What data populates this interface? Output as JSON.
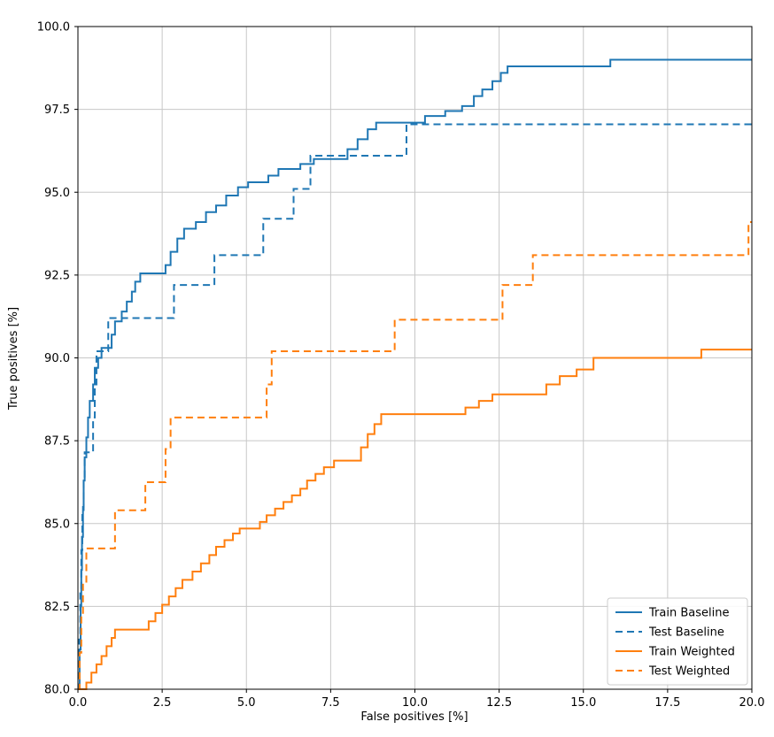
{
  "figure": {
    "background": "#ffffff",
    "spine_color": "#000000",
    "text_color": "#000000"
  },
  "chart_data": {
    "type": "line",
    "title": "",
    "xlabel": "False positives [%]",
    "ylabel": "True positives [%]",
    "xlim": [
      0,
      20
    ],
    "ylim": [
      80,
      100
    ],
    "grid": true,
    "grid_color": "#c7c7c7",
    "xticks": [
      0,
      2.5,
      5,
      7.5,
      10,
      12.5,
      15,
      17.5,
      20
    ],
    "xtick_labels": [
      "0.0",
      "2.5",
      "5.0",
      "7.5",
      "10.0",
      "12.5",
      "15.0",
      "17.5",
      "20.0"
    ],
    "yticks": [
      80,
      82.5,
      85,
      87.5,
      90,
      92.5,
      95,
      97.5,
      100
    ],
    "ytick_labels": [
      "80.0",
      "82.5",
      "85.0",
      "87.5",
      "90.0",
      "92.5",
      "95.0",
      "97.5",
      "100.0"
    ],
    "legend_position": "lower right",
    "step_mode": "post",
    "series": [
      {
        "name": "Train Baseline",
        "color": "#1f77b4",
        "style": "solid",
        "points": [
          [
            0.0,
            80.0
          ],
          [
            0.05,
            81.2
          ],
          [
            0.08,
            82.5
          ],
          [
            0.1,
            83.6
          ],
          [
            0.12,
            84.6
          ],
          [
            0.15,
            85.5
          ],
          [
            0.17,
            86.3
          ],
          [
            0.2,
            87.0
          ],
          [
            0.25,
            87.6
          ],
          [
            0.3,
            88.2
          ],
          [
            0.35,
            88.7
          ],
          [
            0.45,
            89.2
          ],
          [
            0.5,
            89.7
          ],
          [
            0.6,
            90.0
          ],
          [
            0.7,
            90.3
          ],
          [
            1.0,
            90.7
          ],
          [
            1.1,
            91.1
          ],
          [
            1.3,
            91.4
          ],
          [
            1.45,
            91.7
          ],
          [
            1.6,
            92.0
          ],
          [
            1.7,
            92.3
          ],
          [
            1.85,
            92.55
          ],
          [
            2.6,
            92.8
          ],
          [
            2.75,
            93.2
          ],
          [
            2.95,
            93.6
          ],
          [
            3.15,
            93.9
          ],
          [
            3.5,
            94.1
          ],
          [
            3.8,
            94.4
          ],
          [
            4.1,
            94.6
          ],
          [
            4.4,
            94.9
          ],
          [
            4.75,
            95.15
          ],
          [
            5.05,
            95.3
          ],
          [
            5.65,
            95.5
          ],
          [
            5.95,
            95.7
          ],
          [
            6.6,
            95.85
          ],
          [
            7.0,
            96.0
          ],
          [
            8.0,
            96.3
          ],
          [
            8.3,
            96.6
          ],
          [
            8.6,
            96.9
          ],
          [
            8.85,
            97.1
          ],
          [
            10.3,
            97.3
          ],
          [
            10.9,
            97.45
          ],
          [
            11.4,
            97.6
          ],
          [
            11.75,
            97.9
          ],
          [
            12.0,
            98.1
          ],
          [
            12.3,
            98.35
          ],
          [
            12.55,
            98.6
          ],
          [
            12.75,
            98.8
          ],
          [
            15.8,
            99.0
          ],
          [
            20.0,
            99.0
          ]
        ]
      },
      {
        "name": "Test Baseline",
        "color": "#1f77b4",
        "style": "dashed",
        "points": [
          [
            0.0,
            80.0
          ],
          [
            0.04,
            81.5
          ],
          [
            0.07,
            83.0
          ],
          [
            0.1,
            84.2
          ],
          [
            0.13,
            85.3
          ],
          [
            0.17,
            86.3
          ],
          [
            0.2,
            87.15
          ],
          [
            0.45,
            88.2
          ],
          [
            0.5,
            89.2
          ],
          [
            0.55,
            90.2
          ],
          [
            0.9,
            91.2
          ],
          [
            2.85,
            92.2
          ],
          [
            4.05,
            93.1
          ],
          [
            5.5,
            94.2
          ],
          [
            6.4,
            95.1
          ],
          [
            6.9,
            96.1
          ],
          [
            9.75,
            97.05
          ],
          [
            20.0,
            97.05
          ]
        ]
      },
      {
        "name": "Train Weighted",
        "color": "#ff7f0e",
        "style": "solid",
        "points": [
          [
            0.0,
            80.0
          ],
          [
            0.25,
            80.2
          ],
          [
            0.4,
            80.5
          ],
          [
            0.55,
            80.75
          ],
          [
            0.7,
            81.0
          ],
          [
            0.85,
            81.3
          ],
          [
            1.0,
            81.55
          ],
          [
            1.1,
            81.8
          ],
          [
            2.1,
            82.05
          ],
          [
            2.3,
            82.3
          ],
          [
            2.5,
            82.55
          ],
          [
            2.7,
            82.8
          ],
          [
            2.9,
            83.05
          ],
          [
            3.1,
            83.3
          ],
          [
            3.4,
            83.55
          ],
          [
            3.65,
            83.8
          ],
          [
            3.9,
            84.05
          ],
          [
            4.1,
            84.3
          ],
          [
            4.35,
            84.5
          ],
          [
            4.6,
            84.7
          ],
          [
            4.8,
            84.85
          ],
          [
            5.4,
            85.05
          ],
          [
            5.6,
            85.25
          ],
          [
            5.85,
            85.45
          ],
          [
            6.1,
            85.65
          ],
          [
            6.35,
            85.85
          ],
          [
            6.6,
            86.05
          ],
          [
            6.8,
            86.3
          ],
          [
            7.05,
            86.5
          ],
          [
            7.3,
            86.7
          ],
          [
            7.6,
            86.9
          ],
          [
            8.4,
            87.3
          ],
          [
            8.6,
            87.7
          ],
          [
            8.8,
            88.0
          ],
          [
            9.0,
            88.3
          ],
          [
            11.5,
            88.5
          ],
          [
            11.9,
            88.7
          ],
          [
            12.3,
            88.9
          ],
          [
            13.9,
            89.2
          ],
          [
            14.3,
            89.45
          ],
          [
            14.8,
            89.65
          ],
          [
            15.3,
            90.0
          ],
          [
            18.5,
            90.25
          ],
          [
            20.0,
            90.25
          ]
        ]
      },
      {
        "name": "Test Weighted",
        "color": "#ff7f0e",
        "style": "dashed",
        "points": [
          [
            0.0,
            80.0
          ],
          [
            0.05,
            81.1
          ],
          [
            0.1,
            82.2
          ],
          [
            0.15,
            83.2
          ],
          [
            0.25,
            84.25
          ],
          [
            1.1,
            85.4
          ],
          [
            2.0,
            86.25
          ],
          [
            2.6,
            87.25
          ],
          [
            2.75,
            88.2
          ],
          [
            5.6,
            89.2
          ],
          [
            5.75,
            90.2
          ],
          [
            9.4,
            91.15
          ],
          [
            12.6,
            92.2
          ],
          [
            13.5,
            93.1
          ],
          [
            19.9,
            94.1
          ],
          [
            20.0,
            94.1
          ]
        ]
      }
    ]
  }
}
